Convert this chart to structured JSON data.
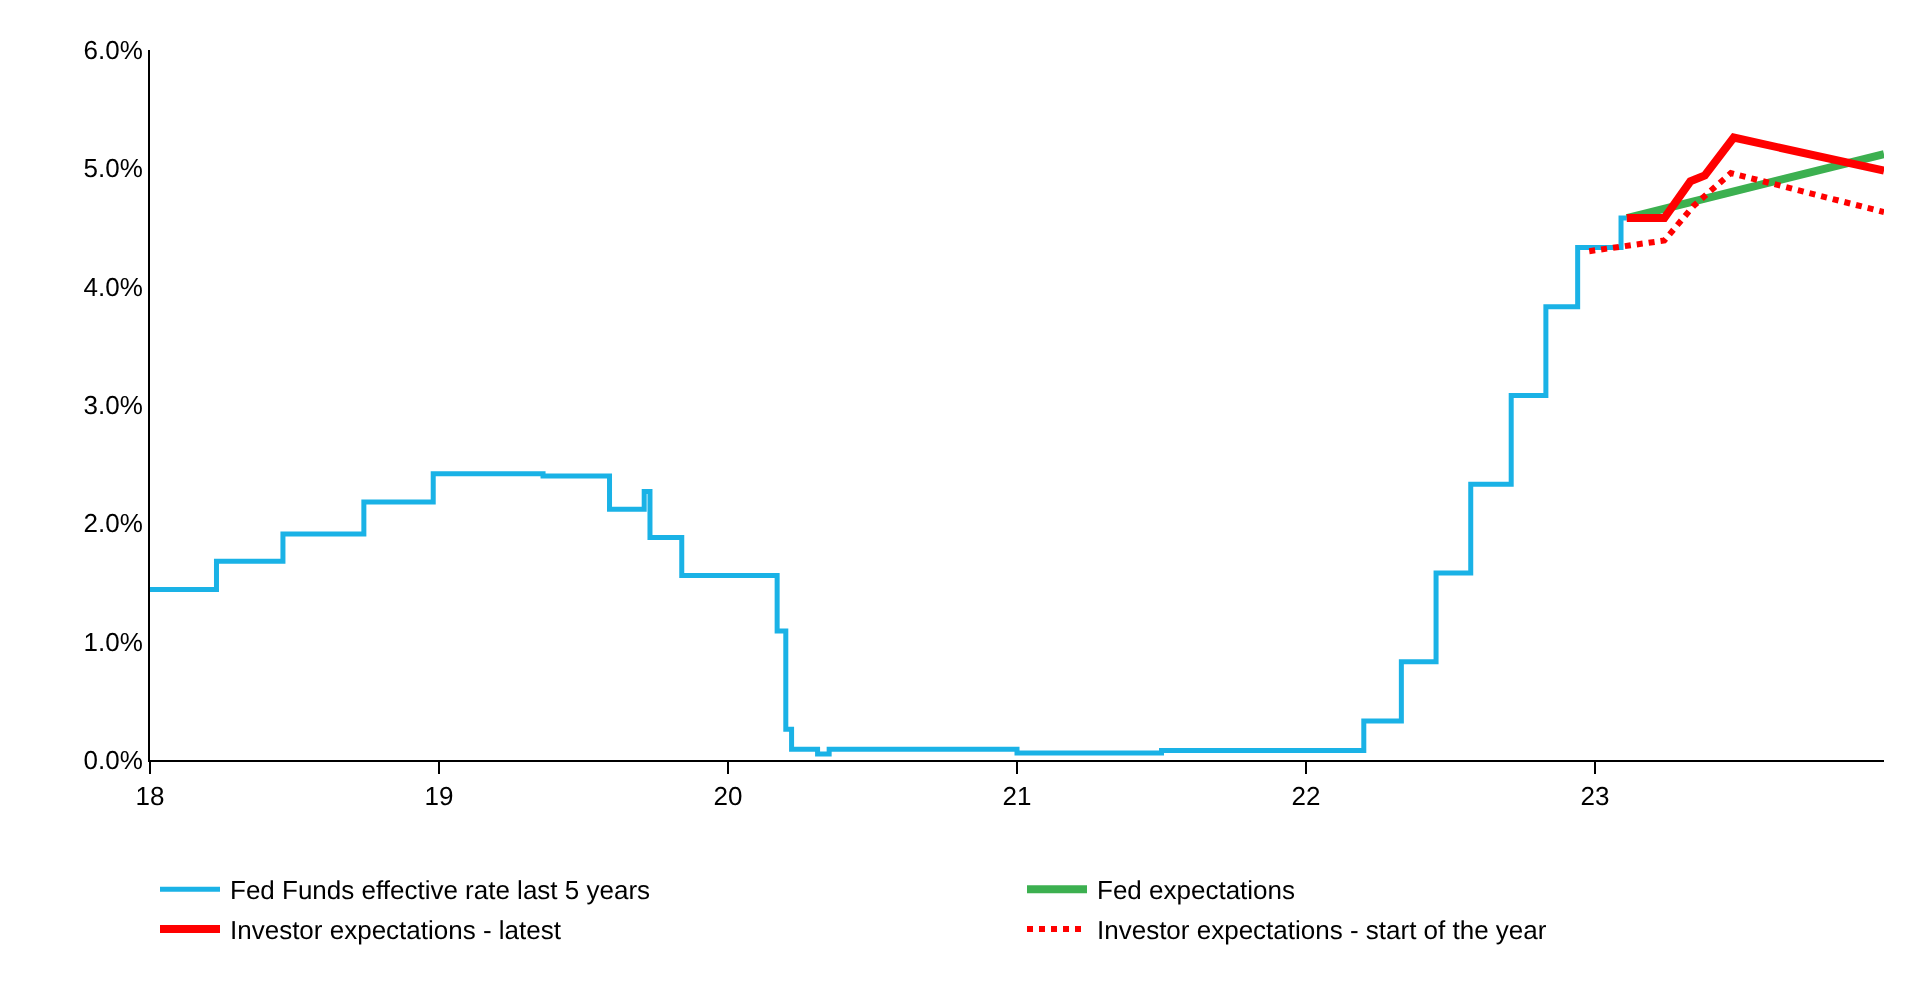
{
  "chart_data": {
    "type": "line",
    "xlim": [
      18,
      24
    ],
    "xticks": [
      18,
      19,
      20,
      21,
      22,
      23
    ],
    "ylim": [
      0,
      6
    ],
    "yticks": [
      {
        "value": 0,
        "label": "0.0%"
      },
      {
        "value": 1,
        "label": "1.0%"
      },
      {
        "value": 2,
        "label": "2.0%"
      },
      {
        "value": 3,
        "label": "3.0%"
      },
      {
        "value": 4,
        "label": "4.0%"
      },
      {
        "value": 5,
        "label": "5.0%"
      },
      {
        "value": 6,
        "label": "6.0%"
      }
    ],
    "grid": false,
    "legend": "bottom",
    "marker": "none",
    "series": [
      {
        "name": "Fed Funds effective rate last 5 years",
        "type": "step",
        "color": "#1ab2e6",
        "line_style": "solid",
        "x": [
          18.0,
          18.23,
          18.46,
          18.74,
          18.98,
          19.36,
          19.59,
          19.71,
          19.73,
          19.84,
          20.17,
          20.2,
          20.22,
          20.31,
          20.35,
          21.0,
          21.5,
          22.2,
          22.33,
          22.45,
          22.57,
          22.71,
          22.83,
          22.94,
          23.09,
          23.11
        ],
        "values": [
          1.44,
          1.68,
          1.91,
          2.18,
          2.42,
          2.4,
          2.12,
          2.27,
          1.88,
          1.56,
          1.09,
          0.26,
          0.09,
          0.05,
          0.09,
          0.06,
          0.08,
          0.33,
          0.83,
          1.58,
          2.33,
          3.08,
          3.83,
          4.33,
          4.58,
          4.58
        ]
      },
      {
        "name": "Fed expectations",
        "color": "#3cb050",
        "line_style": "solid",
        "x": [
          23.11,
          24.0
        ],
        "values": [
          4.58,
          5.12
        ]
      },
      {
        "name": "Investor expectations - latest",
        "color": "#ff0000",
        "line_style": "solid",
        "x": [
          23.11,
          23.24,
          23.33,
          23.38,
          23.48,
          24.0
        ],
        "values": [
          4.58,
          4.58,
          4.89,
          4.94,
          5.26,
          4.98
        ]
      },
      {
        "name": "Investor expectations - start of the year",
        "color": "#ff0000",
        "line_style": "dotted",
        "x": [
          22.98,
          23.24,
          23.34,
          23.47,
          24.0
        ],
        "values": [
          4.3,
          4.39,
          4.68,
          4.96,
          4.63
        ]
      }
    ]
  }
}
